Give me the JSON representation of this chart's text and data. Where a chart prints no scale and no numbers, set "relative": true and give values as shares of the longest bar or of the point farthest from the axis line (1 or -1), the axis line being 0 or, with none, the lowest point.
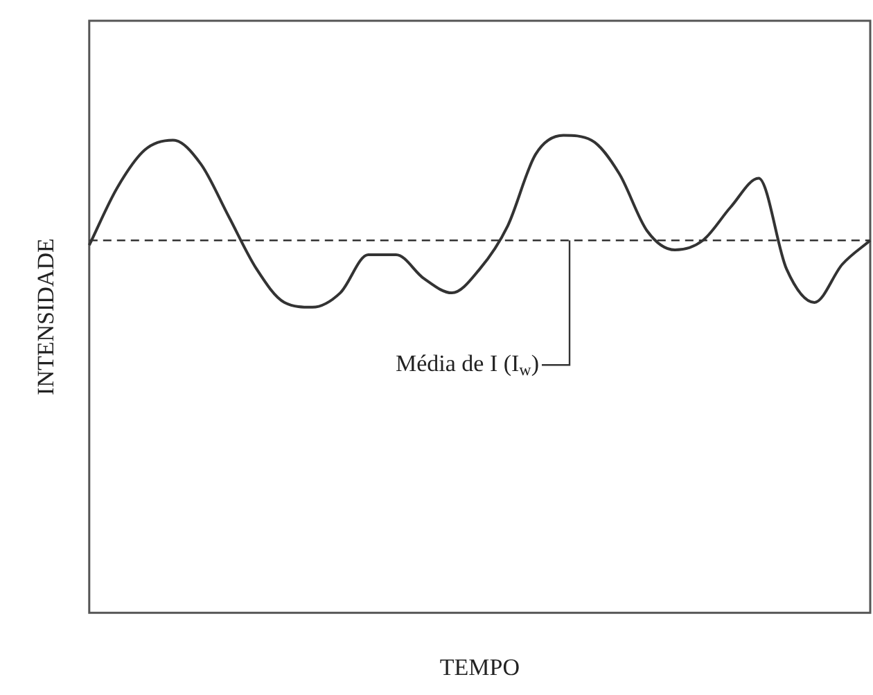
{
  "chart_data": {
    "type": "line",
    "relative": true,
    "xlabel": "TEMPO",
    "ylabel": "INTENSIDADE",
    "categories": [
      null,
      null,
      null,
      null,
      null,
      null,
      null,
      null,
      null,
      null,
      null,
      null,
      null,
      null,
      null,
      null,
      null,
      null,
      null,
      null,
      null,
      null,
      null,
      null,
      null,
      null,
      null,
      null,
      null
    ],
    "series": [
      {
        "color": "#333333",
        "values": [
          0.77,
          0.89,
          0.97,
          0.99,
          0.94,
          0.83,
          0.72,
          0.65,
          0.64,
          0.67,
          0.75,
          0.75,
          0.7,
          0.67,
          0.72,
          0.81,
          0.96,
          1,
          0.99,
          0.92,
          0.8,
          0.76,
          0.78,
          0.85,
          0.91,
          0.72,
          0.65,
          0.73,
          0.78
        ]
      }
    ],
    "ref_lines": [
      {
        "axis": "y",
        "value": 0.78,
        "label": "Média de I (I$_{w}$)",
        "line_style": "dashed",
        "color": "#333333"
      }
    ],
    "grid": false,
    "legend": false,
    "marker": "none",
    "line_style": "solid"
  }
}
